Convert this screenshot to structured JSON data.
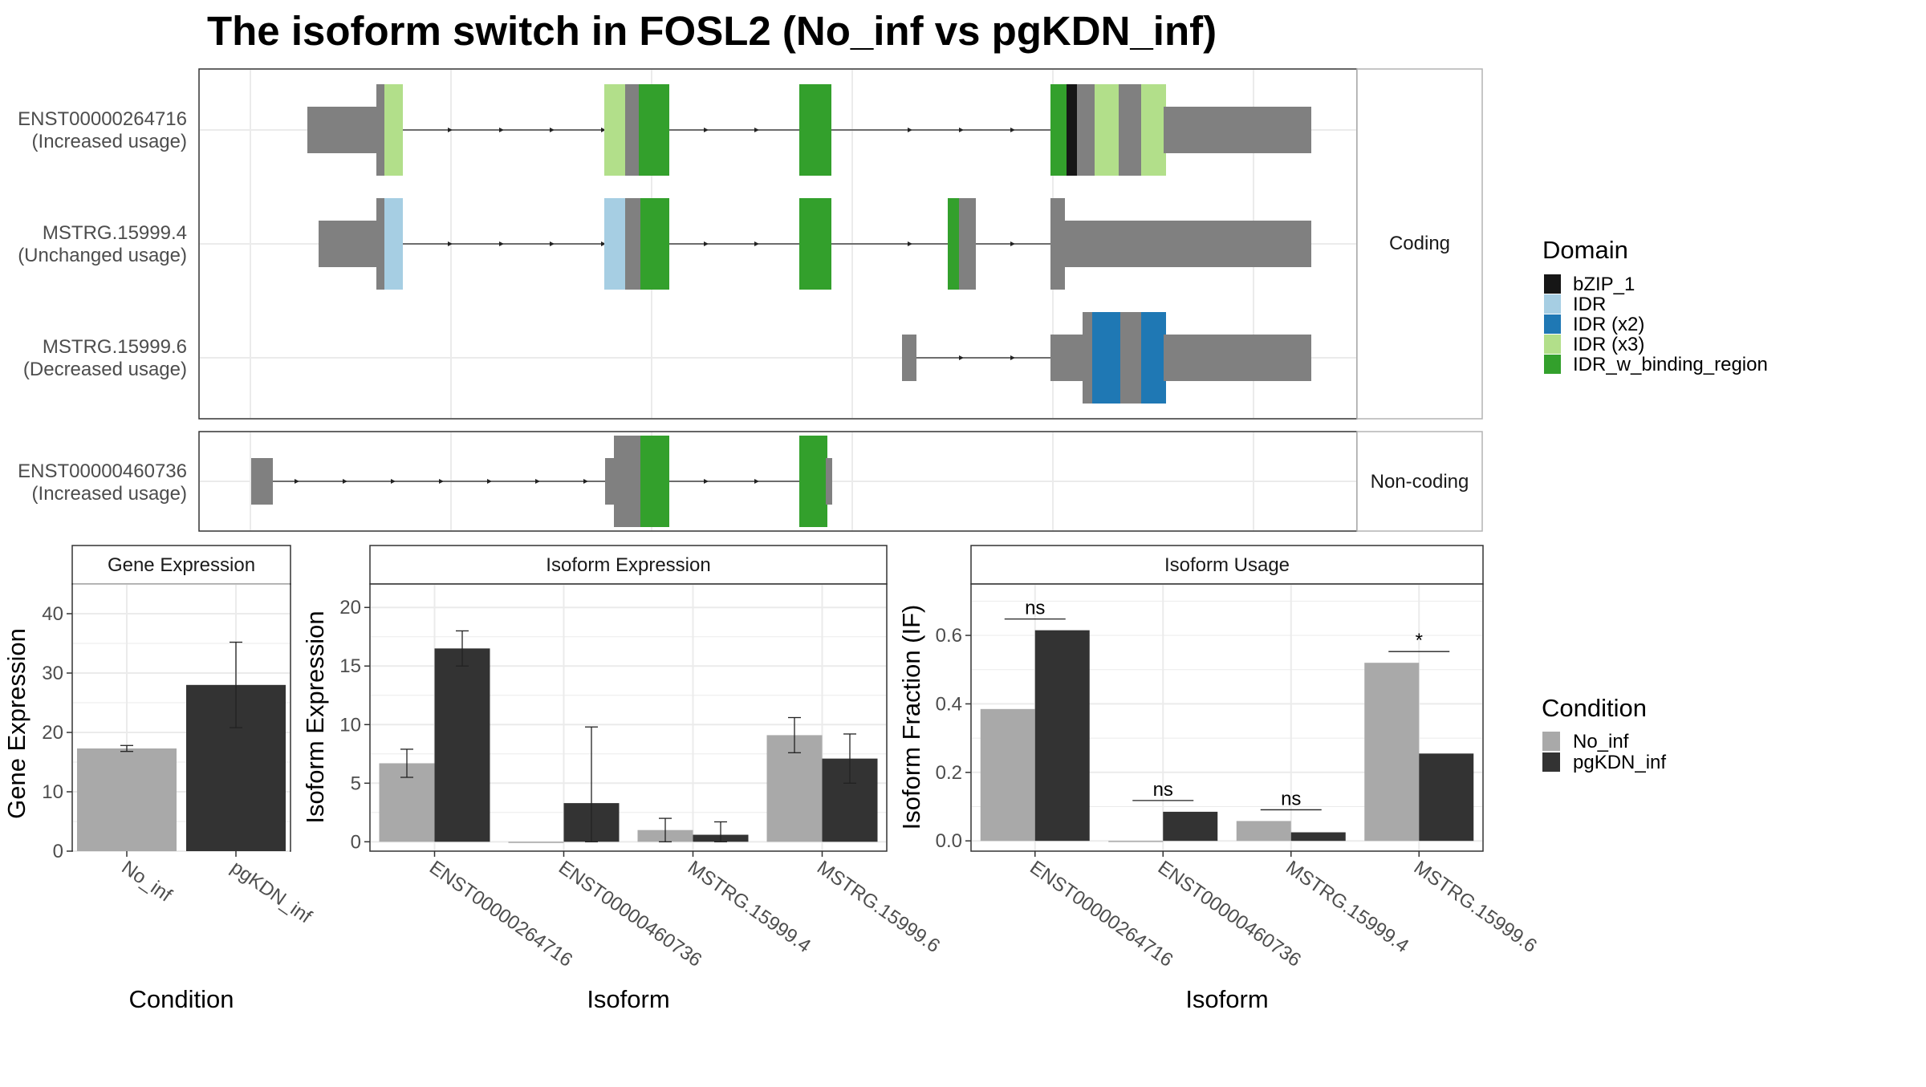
{
  "title": "The isoform switch in FOSL2 (No_inf vs pgKDN_inf)",
  "colors": {
    "grey_exon": "#808080",
    "bZIP_1": "#161616",
    "IDR": "#A6CEE3",
    "IDR_x2": "#1F78B4",
    "IDR_x3": "#B2DF8A",
    "IDR_w_binding_region": "#33A02C",
    "No_inf": "#A9A9A9",
    "pgKDN_inf": "#333333"
  },
  "structure": {
    "coding_strip": "Coding",
    "noncoding_strip": "Non-coding",
    "tracks": [
      {
        "id": "ENST00000264716",
        "usage": "(Increased usage)"
      },
      {
        "id": "MSTRG.15999.4",
        "usage": "(Unchanged usage)"
      },
      {
        "id": "MSTRG.15999.6",
        "usage": "(Decreased usage)"
      },
      {
        "id": "ENST00000460736",
        "usage": "(Increased usage)"
      }
    ]
  },
  "domain_legend": {
    "title": "Domain",
    "items": [
      {
        "label": "bZIP_1",
        "color": "#161616"
      },
      {
        "label": "IDR",
        "color": "#A6CEE3"
      },
      {
        "label": "IDR (x2)",
        "color": "#1F78B4"
      },
      {
        "label": "IDR (x3)",
        "color": "#B2DF8A"
      },
      {
        "label": "IDR_w_binding_region",
        "color": "#33A02C"
      }
    ]
  },
  "condition_legend": {
    "title": "Condition",
    "items": [
      {
        "label": "No_inf",
        "color": "#A9A9A9"
      },
      {
        "label": "pgKDN_inf",
        "color": "#333333"
      }
    ]
  },
  "chart_data": [
    {
      "type": "bar",
      "title": "Gene Expression",
      "xlabel": "Condition",
      "ylabel": "Gene Expression",
      "ylim": [
        0,
        45
      ],
      "yticks": [
        0,
        10,
        20,
        30,
        40
      ],
      "categories": [
        "No_inf",
        "pgKDN_inf"
      ],
      "values": [
        17.3,
        28.0
      ],
      "error_low": [
        16.8,
        20.8
      ],
      "error_high": [
        17.8,
        35.2
      ]
    },
    {
      "type": "bar",
      "title": "Isoform Expression",
      "xlabel": "Isoform",
      "ylabel": "Isoform Expression",
      "ylim": [
        -0.8,
        22
      ],
      "yticks": [
        0,
        5,
        10,
        15,
        20
      ],
      "categories": [
        "ENST00000264716",
        "ENST00000460736",
        "MSTRG.15999.4",
        "MSTRG.15999.6"
      ],
      "series": [
        {
          "name": "No_inf",
          "values": [
            6.7,
            0.0,
            1.0,
            9.1
          ],
          "error_low": [
            5.5,
            0.0,
            0.0,
            7.6
          ],
          "error_high": [
            7.9,
            0.0,
            2.0,
            10.6
          ]
        },
        {
          "name": "pgKDN_inf",
          "values": [
            16.5,
            3.3,
            0.6,
            7.1
          ],
          "error_low": [
            15.0,
            0.0,
            0.0,
            5.0
          ],
          "error_high": [
            18.0,
            9.8,
            1.7,
            9.2
          ]
        }
      ]
    },
    {
      "type": "bar",
      "title": "Isoform Usage",
      "xlabel": "Isoform",
      "ylabel": "Isoform Fraction (IF)",
      "ylim": [
        -0.03,
        0.75
      ],
      "yticks": [
        0.0,
        0.2,
        0.4,
        0.6
      ],
      "categories": [
        "ENST00000264716",
        "ENST00000460736",
        "MSTRG.15999.4",
        "MSTRG.15999.6"
      ],
      "series": [
        {
          "name": "No_inf",
          "values": [
            0.385,
            0.0,
            0.058,
            0.52
          ]
        },
        {
          "name": "pgKDN_inf",
          "values": [
            0.615,
            0.085,
            0.025,
            0.255
          ]
        }
      ],
      "significance": [
        "ns",
        "ns",
        "ns",
        "*"
      ]
    }
  ]
}
